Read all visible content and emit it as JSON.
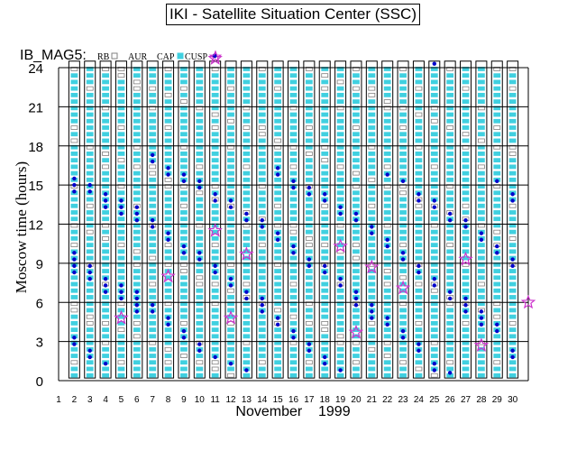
{
  "page": {
    "title": "IKI - Satellite Situation Center (SSC)"
  },
  "chart_data": {
    "type": "scatter",
    "title": "IKI - Satellite Situation Center (SSC)",
    "dataset_label": "IB_MAG5:",
    "xlabel": "November    1999",
    "ylabel": "Moscow time (hours)",
    "xlim": [
      1,
      31
    ],
    "ylim": [
      0,
      24
    ],
    "x_ticks": [
      1,
      2,
      3,
      4,
      5,
      6,
      7,
      8,
      9,
      10,
      11,
      12,
      13,
      14,
      15,
      16,
      17,
      18,
      19,
      20,
      21,
      22,
      23,
      24,
      25,
      26,
      27,
      28,
      29,
      30
    ],
    "y_ticks": [
      0,
      3,
      6,
      9,
      12,
      15,
      18,
      21,
      24
    ],
    "grid": true,
    "legend_position": "top-left",
    "legend": [
      {
        "key": "RB",
        "label": "RB",
        "marker": "square",
        "color": "#808080"
      },
      {
        "key": "AUR",
        "label": "AUR",
        "marker": "none",
        "color": "#000000"
      },
      {
        "key": "CAP",
        "label": "CAP",
        "marker": "square",
        "color": "#40d0e0"
      },
      {
        "key": "CUSP",
        "label": "CUSP",
        "marker": "dot",
        "color": "#0000cc"
      },
      {
        "key": "EVENT",
        "label": "",
        "marker": "star",
        "color": "#cc33cc"
      }
    ],
    "colors": {
      "RB": "#808080",
      "CAP": "#40d0e0",
      "CUSP": "#0000cc",
      "EVENT": "#cc33cc"
    },
    "series": [
      {
        "name": "CUSP",
        "points": [
          [
            2,
            9.8
          ],
          [
            2,
            9.3
          ],
          [
            2,
            8.8
          ],
          [
            2,
            8.3
          ],
          [
            2,
            3.3
          ],
          [
            2,
            2.8
          ],
          [
            2,
            15.5
          ],
          [
            2,
            15.0
          ],
          [
            2,
            14.5
          ],
          [
            3,
            15.0
          ],
          [
            3,
            14.5
          ],
          [
            3,
            8.8
          ],
          [
            3,
            8.3
          ],
          [
            3,
            7.8
          ],
          [
            3,
            2.3
          ],
          [
            3,
            1.8
          ],
          [
            4,
            14.3
          ],
          [
            4,
            13.8
          ],
          [
            4,
            13.3
          ],
          [
            4,
            7.8
          ],
          [
            4,
            7.3
          ],
          [
            4,
            6.8
          ],
          [
            4,
            1.3
          ],
          [
            5,
            13.8
          ],
          [
            5,
            13.3
          ],
          [
            5,
            12.8
          ],
          [
            5,
            7.3
          ],
          [
            5,
            6.8
          ],
          [
            5,
            6.3
          ],
          [
            6,
            13.3
          ],
          [
            6,
            12.8
          ],
          [
            6,
            12.3
          ],
          [
            6,
            6.8
          ],
          [
            6,
            6.3
          ],
          [
            6,
            5.8
          ],
          [
            6,
            5.3
          ],
          [
            7,
            17.3
          ],
          [
            7,
            16.8
          ],
          [
            7,
            12.3
          ],
          [
            7,
            11.8
          ],
          [
            7,
            5.8
          ],
          [
            7,
            5.3
          ],
          [
            8,
            16.3
          ],
          [
            8,
            15.8
          ],
          [
            8,
            11.3
          ],
          [
            8,
            10.8
          ],
          [
            8,
            4.8
          ],
          [
            8,
            4.3
          ],
          [
            9,
            15.8
          ],
          [
            9,
            15.3
          ],
          [
            9,
            10.3
          ],
          [
            9,
            9.8
          ],
          [
            9,
            3.8
          ],
          [
            9,
            3.3
          ],
          [
            10,
            15.3
          ],
          [
            10,
            14.8
          ],
          [
            10,
            9.8
          ],
          [
            10,
            9.3
          ],
          [
            10,
            2.8
          ],
          [
            10,
            2.3
          ],
          [
            11,
            14.3
          ],
          [
            11,
            13.8
          ],
          [
            11,
            8.8
          ],
          [
            11,
            8.3
          ],
          [
            11,
            1.8
          ],
          [
            12,
            13.8
          ],
          [
            12,
            13.3
          ],
          [
            12,
            7.8
          ],
          [
            12,
            7.3
          ],
          [
            12,
            1.3
          ],
          [
            13,
            12.8
          ],
          [
            13,
            12.3
          ],
          [
            13,
            6.8
          ],
          [
            13,
            6.3
          ],
          [
            13,
            0.8
          ],
          [
            14,
            12.3
          ],
          [
            14,
            11.8
          ],
          [
            14,
            6.3
          ],
          [
            14,
            5.8
          ],
          [
            14,
            5.3
          ],
          [
            15,
            16.3
          ],
          [
            15,
            15.8
          ],
          [
            15,
            11.3
          ],
          [
            15,
            10.8
          ],
          [
            15,
            4.8
          ],
          [
            15,
            4.3
          ],
          [
            16,
            15.3
          ],
          [
            16,
            14.8
          ],
          [
            16,
            10.3
          ],
          [
            16,
            9.8
          ],
          [
            16,
            3.8
          ],
          [
            16,
            3.3
          ],
          [
            17,
            14.8
          ],
          [
            17,
            14.3
          ],
          [
            17,
            9.3
          ],
          [
            17,
            8.8
          ],
          [
            17,
            2.8
          ],
          [
            17,
            2.3
          ],
          [
            18,
            14.3
          ],
          [
            18,
            13.8
          ],
          [
            18,
            8.8
          ],
          [
            18,
            8.3
          ],
          [
            18,
            1.8
          ],
          [
            18,
            1.3
          ],
          [
            19,
            13.3
          ],
          [
            19,
            12.8
          ],
          [
            19,
            7.8
          ],
          [
            19,
            7.3
          ],
          [
            19,
            0.8
          ],
          [
            20,
            12.8
          ],
          [
            20,
            12.3
          ],
          [
            20,
            6.8
          ],
          [
            20,
            6.3
          ],
          [
            20,
            5.8
          ],
          [
            21,
            11.8
          ],
          [
            21,
            11.3
          ],
          [
            21,
            5.8
          ],
          [
            21,
            5.3
          ],
          [
            21,
            4.8
          ],
          [
            22,
            15.8
          ],
          [
            22,
            10.8
          ],
          [
            22,
            10.3
          ],
          [
            22,
            4.8
          ],
          [
            22,
            4.3
          ],
          [
            23,
            15.3
          ],
          [
            23,
            9.8
          ],
          [
            23,
            9.3
          ],
          [
            23,
            3.8
          ],
          [
            23,
            3.3
          ],
          [
            24,
            14.3
          ],
          [
            24,
            13.8
          ],
          [
            24,
            8.8
          ],
          [
            24,
            8.3
          ],
          [
            24,
            2.8
          ],
          [
            24,
            2.3
          ],
          [
            25,
            24.3
          ],
          [
            25,
            13.8
          ],
          [
            25,
            13.3
          ],
          [
            25,
            7.8
          ],
          [
            25,
            7.3
          ],
          [
            25,
            1.3
          ],
          [
            25,
            0.8
          ],
          [
            26,
            12.8
          ],
          [
            26,
            12.3
          ],
          [
            26,
            6.8
          ],
          [
            26,
            6.3
          ],
          [
            26,
            0.6
          ],
          [
            27,
            12.3
          ],
          [
            27,
            11.8
          ],
          [
            27,
            6.3
          ],
          [
            27,
            5.8
          ],
          [
            27,
            5.3
          ],
          [
            28,
            11.3
          ],
          [
            28,
            10.8
          ],
          [
            28,
            5.3
          ],
          [
            28,
            4.8
          ],
          [
            28,
            4.3
          ],
          [
            29,
            15.3
          ],
          [
            29,
            10.3
          ],
          [
            29,
            9.8
          ],
          [
            29,
            4.3
          ],
          [
            29,
            3.8
          ],
          [
            30,
            14.3
          ],
          [
            30,
            13.8
          ],
          [
            30,
            9.3
          ],
          [
            30,
            8.8
          ],
          [
            30,
            2.3
          ],
          [
            30,
            1.8
          ]
        ]
      },
      {
        "name": "EVENT",
        "points": [
          [
            5,
            4.8
          ],
          [
            8,
            8.0
          ],
          [
            11,
            11.5
          ],
          [
            11,
            24.7
          ],
          [
            12,
            4.8
          ],
          [
            13,
            9.7
          ],
          [
            19,
            10.3
          ],
          [
            20,
            3.7
          ],
          [
            21,
            8.7
          ],
          [
            23,
            7.1
          ],
          [
            27,
            9.3
          ],
          [
            28,
            2.7
          ],
          [
            31,
            6.0
          ]
        ]
      }
    ]
  }
}
